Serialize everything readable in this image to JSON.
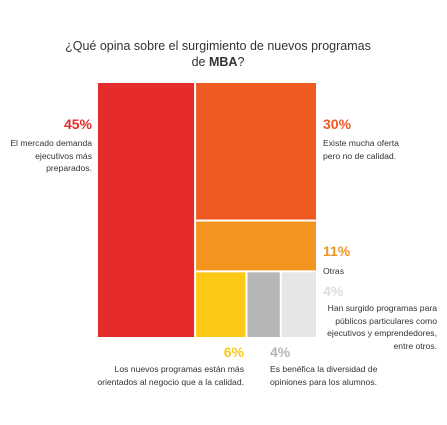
{
  "chart_data": {
    "type": "treemap",
    "title": "¿Qué opina sobre el surgimiento de nuevos programas de",
    "title_bold": "MBA",
    "title_end": "?",
    "items": [
      {
        "pct_label": "45%",
        "value": 45,
        "color": "#e52b2b",
        "label": "El mercado demanda ejecutivos más preparados."
      },
      {
        "pct_label": "30%",
        "value": 30,
        "color": "#ee5a22",
        "label": "Existe mucha oferta pero no de calidad."
      },
      {
        "pct_label": "11%",
        "value": 11,
        "color": "#f3941f",
        "label": "Otras"
      },
      {
        "pct_label": "4%",
        "value": 4,
        "color": "#e6e6e6",
        "label": "Han surgido programas para públicos particulares como ejecutivos y emprendedores, entre otros."
      },
      {
        "pct_label": "6%",
        "value": 6,
        "color": "#fdc916",
        "label": "Los nuevos programas están más orientados al negocio que a la calidad."
      },
      {
        "pct_label": "4%",
        "value": 4,
        "color": "#b6b6b6",
        "label": "Es benéfica la diversidad de opiniones para los alumnos."
      }
    ]
  }
}
